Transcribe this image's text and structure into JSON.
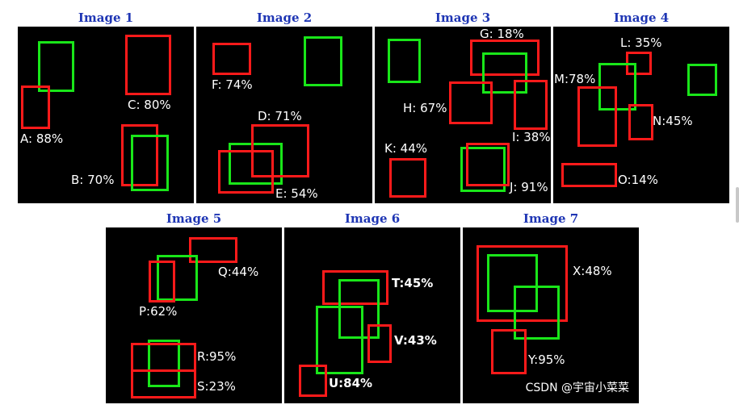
{
  "watermark": "CSDN @宇宙小菜菜",
  "colors": {
    "background": "#000000",
    "title": "#1f36b4",
    "red_box": "#ff1a1a",
    "green_box": "#19e619",
    "label": "#ffffff"
  },
  "panels": [
    {
      "title": "Image 1",
      "labels": [
        "C: 80%",
        "A: 88%",
        "B: 70%"
      ]
    },
    {
      "title": "Image 2",
      "labels": [
        "F: 74%",
        "D: 71%",
        "E: 54%"
      ]
    },
    {
      "title": "Image 3",
      "labels": [
        "G: 18%",
        "H: 67%",
        "I: 38%",
        "K: 44%",
        "J: 91%"
      ]
    },
    {
      "title": "Image 4",
      "labels": [
        "L: 35%",
        "M:78%",
        "N:45%",
        "O:14%"
      ]
    },
    {
      "title": "Image 5",
      "labels": [
        "Q:44%",
        "P:62%",
        "R:95%",
        "S:23%"
      ]
    },
    {
      "title": "Image 6",
      "labels": [
        "T:45%",
        "V:43%",
        "U:84%"
      ]
    },
    {
      "title": "Image 7",
      "labels": [
        "X:48%",
        "Y:95%"
      ]
    }
  ]
}
